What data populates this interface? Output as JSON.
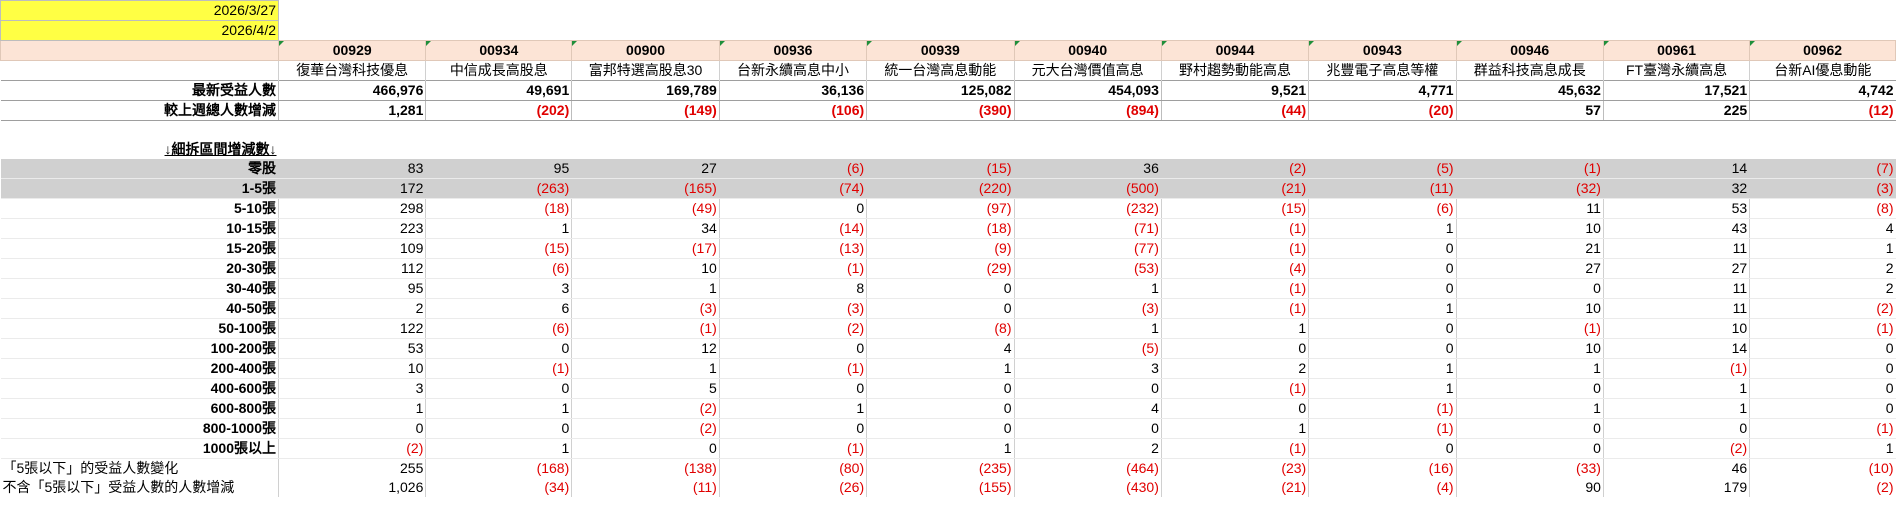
{
  "dates": [
    "2026/3/27",
    "2026/4/2"
  ],
  "funds": [
    {
      "code": "00929",
      "name": "復華台灣科技優息"
    },
    {
      "code": "00934",
      "name": "中信成長高股息"
    },
    {
      "code": "00900",
      "name": "富邦特選高股息30"
    },
    {
      "code": "00936",
      "name": "台新永續高息中小"
    },
    {
      "code": "00939",
      "name": "統一台灣高息動能"
    },
    {
      "code": "00940",
      "name": "元大台灣價值高息"
    },
    {
      "code": "00944",
      "name": "野村趨勢動能高息"
    },
    {
      "code": "00943",
      "name": "兆豐電子高息等權"
    },
    {
      "code": "00946",
      "name": "群益科技高息成長"
    },
    {
      "code": "00961",
      "name": "FT臺灣永續高息"
    },
    {
      "code": "00962",
      "name": "台新AI優息動能"
    }
  ],
  "summary_rows": [
    {
      "label": "最新受益人數",
      "values": [
        "466,976",
        "49,691",
        "169,789",
        "36,136",
        "125,082",
        "454,093",
        "9,521",
        "4,771",
        "45,632",
        "17,521",
        "4,742"
      ]
    },
    {
      "label": "較上週總人數增減",
      "values": [
        "1,281",
        "(202)",
        "(149)",
        "(106)",
        "(390)",
        "(894)",
        "(44)",
        "(20)",
        "57",
        "225",
        "(12)"
      ]
    }
  ],
  "section_title": "↓細拆區間增減數↓",
  "bracket_rows": [
    {
      "label": "零股",
      "values": [
        "83",
        "95",
        "27",
        "(6)",
        "(15)",
        "36",
        "(2)",
        "(5)",
        "(1)",
        "14",
        "(7)"
      ]
    },
    {
      "label": "1-5張",
      "values": [
        "172",
        "(263)",
        "(165)",
        "(74)",
        "(220)",
        "(500)",
        "(21)",
        "(11)",
        "(32)",
        "32",
        "(3)"
      ]
    },
    {
      "label": "5-10張",
      "values": [
        "298",
        "(18)",
        "(49)",
        "0",
        "(97)",
        "(232)",
        "(15)",
        "(6)",
        "11",
        "53",
        "(8)"
      ]
    },
    {
      "label": "10-15張",
      "values": [
        "223",
        "1",
        "34",
        "(14)",
        "(18)",
        "(71)",
        "(1)",
        "1",
        "10",
        "43",
        "4"
      ]
    },
    {
      "label": "15-20張",
      "values": [
        "109",
        "(15)",
        "(17)",
        "(13)",
        "(9)",
        "(77)",
        "(1)",
        "0",
        "21",
        "11",
        "1"
      ]
    },
    {
      "label": "20-30張",
      "values": [
        "112",
        "(6)",
        "10",
        "(1)",
        "(29)",
        "(53)",
        "(4)",
        "0",
        "27",
        "27",
        "2"
      ]
    },
    {
      "label": "30-40張",
      "values": [
        "95",
        "3",
        "1",
        "8",
        "0",
        "1",
        "(1)",
        "0",
        "0",
        "11",
        "2"
      ]
    },
    {
      "label": "40-50張",
      "values": [
        "2",
        "6",
        "(3)",
        "(3)",
        "0",
        "(3)",
        "(1)",
        "1",
        "10",
        "11",
        "(2)"
      ]
    },
    {
      "label": "50-100張",
      "values": [
        "122",
        "(6)",
        "(1)",
        "(2)",
        "(8)",
        "1",
        "1",
        "0",
        "(1)",
        "10",
        "(1)"
      ]
    },
    {
      "label": "100-200張",
      "values": [
        "53",
        "0",
        "12",
        "0",
        "4",
        "(5)",
        "0",
        "0",
        "10",
        "14",
        "0"
      ]
    },
    {
      "label": "200-400張",
      "values": [
        "10",
        "(1)",
        "1",
        "(1)",
        "1",
        "3",
        "2",
        "1",
        "1",
        "(1)",
        "0"
      ]
    },
    {
      "label": "400-600張",
      "values": [
        "3",
        "0",
        "5",
        "0",
        "0",
        "0",
        "(1)",
        "1",
        "0",
        "1",
        "0"
      ]
    },
    {
      "label": "600-800張",
      "values": [
        "1",
        "1",
        "(2)",
        "1",
        "0",
        "4",
        "0",
        "(1)",
        "1",
        "1",
        "0"
      ]
    },
    {
      "label": "800-1000張",
      "values": [
        "0",
        "0",
        "(2)",
        "0",
        "0",
        "0",
        "1",
        "(1)",
        "0",
        "0",
        "(1)"
      ]
    },
    {
      "label": "1000張以上",
      "values": [
        "(2)",
        "1",
        "0",
        "(1)",
        "1",
        "2",
        "(1)",
        "0",
        "0",
        "(2)",
        "1"
      ]
    }
  ],
  "bottom_rows": [
    {
      "label": "「5張以下」的受益人數變化",
      "values": [
        "255",
        "(168)",
        "(138)",
        "(80)",
        "(235)",
        "(464)",
        "(23)",
        "(16)",
        "(33)",
        "46",
        "(10)"
      ]
    },
    {
      "label": "不含「5張以下」受益人數的人數增減",
      "values": [
        "1,026",
        "(34)",
        "(11)",
        "(26)",
        "(155)",
        "(430)",
        "(21)",
        "(4)",
        "90",
        "179",
        "(2)"
      ]
    }
  ],
  "colors": {
    "date_bg": "#ffff44",
    "header_bg": "#fce4d6",
    "gray_row_bg": "#d0d0d0",
    "negative": "#e00000"
  }
}
